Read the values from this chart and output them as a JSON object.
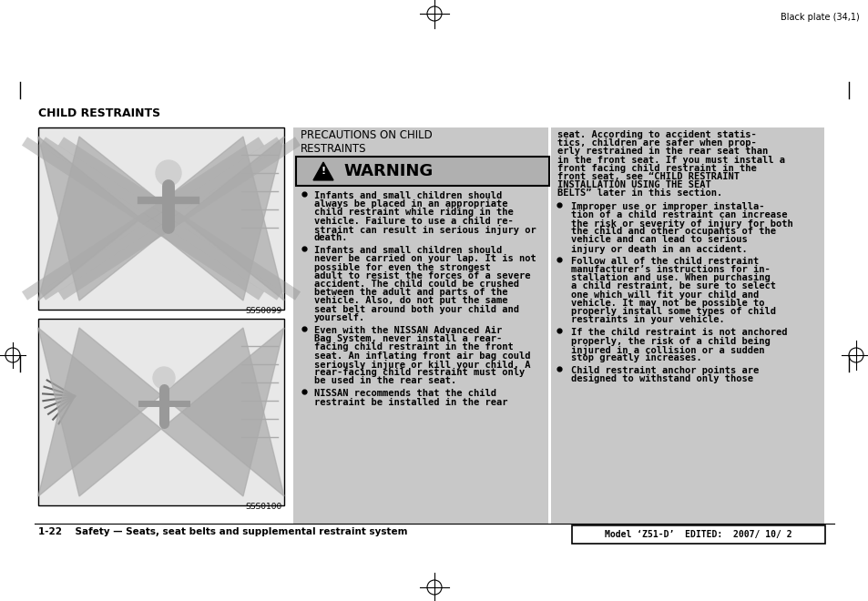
{
  "page_bg": "#ffffff",
  "gray_bg": "#c8c8c8",
  "top_label": "Black plate (34,1)",
  "title": "CHILD RESTRAINTS",
  "section_title_line1": "PRECAUTIONS ON CHILD",
  "section_title_line2": "RESTRAINTS",
  "warning_title": "⚠   WARNING",
  "warning_box_bg": "#b0b0b0",
  "bullet_col1": [
    "Infants and small children should\nalways be placed in an appropriate\nchild restraint while riding in the\nvehicle. Failure to use a child re-\nstraint can result in serious injury or\ndeath.",
    "Infants and small children should\nnever be carried on your lap. It is not\npossible for even the strongest\nadult to resist the forces of a severe\naccident. The child could be crushed\nbetween the adult and parts of the\nvehicle. Also, do not put the same\nseat belt around both your child and\nyourself.",
    "Even with the NISSAN Advanced Air\nBag System, never install a rear-\nfacing child restraint in the front\nseat. An inflating front air bag could\nseriously injure or kill your child. A\nrear-facing child restraint must only\nbe used in the rear seat.",
    "NISSAN recommends that the child\nrestraint be installed in the rear"
  ],
  "bullet_col2": [
    "seat. According to accident statis-\ntics, children are safer when prop-\nerly restrained in the rear seat than\nin the front seat. If you must install a\nfront facing child restraint in the\nfront seat, see “CHILD RESTRAINT\nINSTALLATION USING THE SEAT\nBELTS” later in this section.",
    "Improper use or improper installa-\ntion of a child restraint can increase\nthe risk or severity of injury for both\nthe child and other occupants of the\nvehicle and can lead to serious\ninjury or death in an accident.",
    "Follow all of the child restraint\nmanufacturer’s instructions for in-\nstallation and use. When purchasing\na child restraint, be sure to select\none which will fit your child and\nvehicle. It may not be possible to\nproperly install some types of child\nrestraints in your vehicle.",
    "If the child restraint is not anchored\nproperly, the risk of a child being\ninjured in a collision or a sudden\nstop greatly increases.",
    "Child restraint anchor points are\ndesigned to withstand only those"
  ],
  "footer_left": "1-22    Safety — Seats, seat belts and supplemental restraint system",
  "footer_right": "Model ‘Z51-D’  EDITED:  2007/ 10/ 2",
  "img1_label": "SSS0099",
  "img2_label": "SSS0100"
}
